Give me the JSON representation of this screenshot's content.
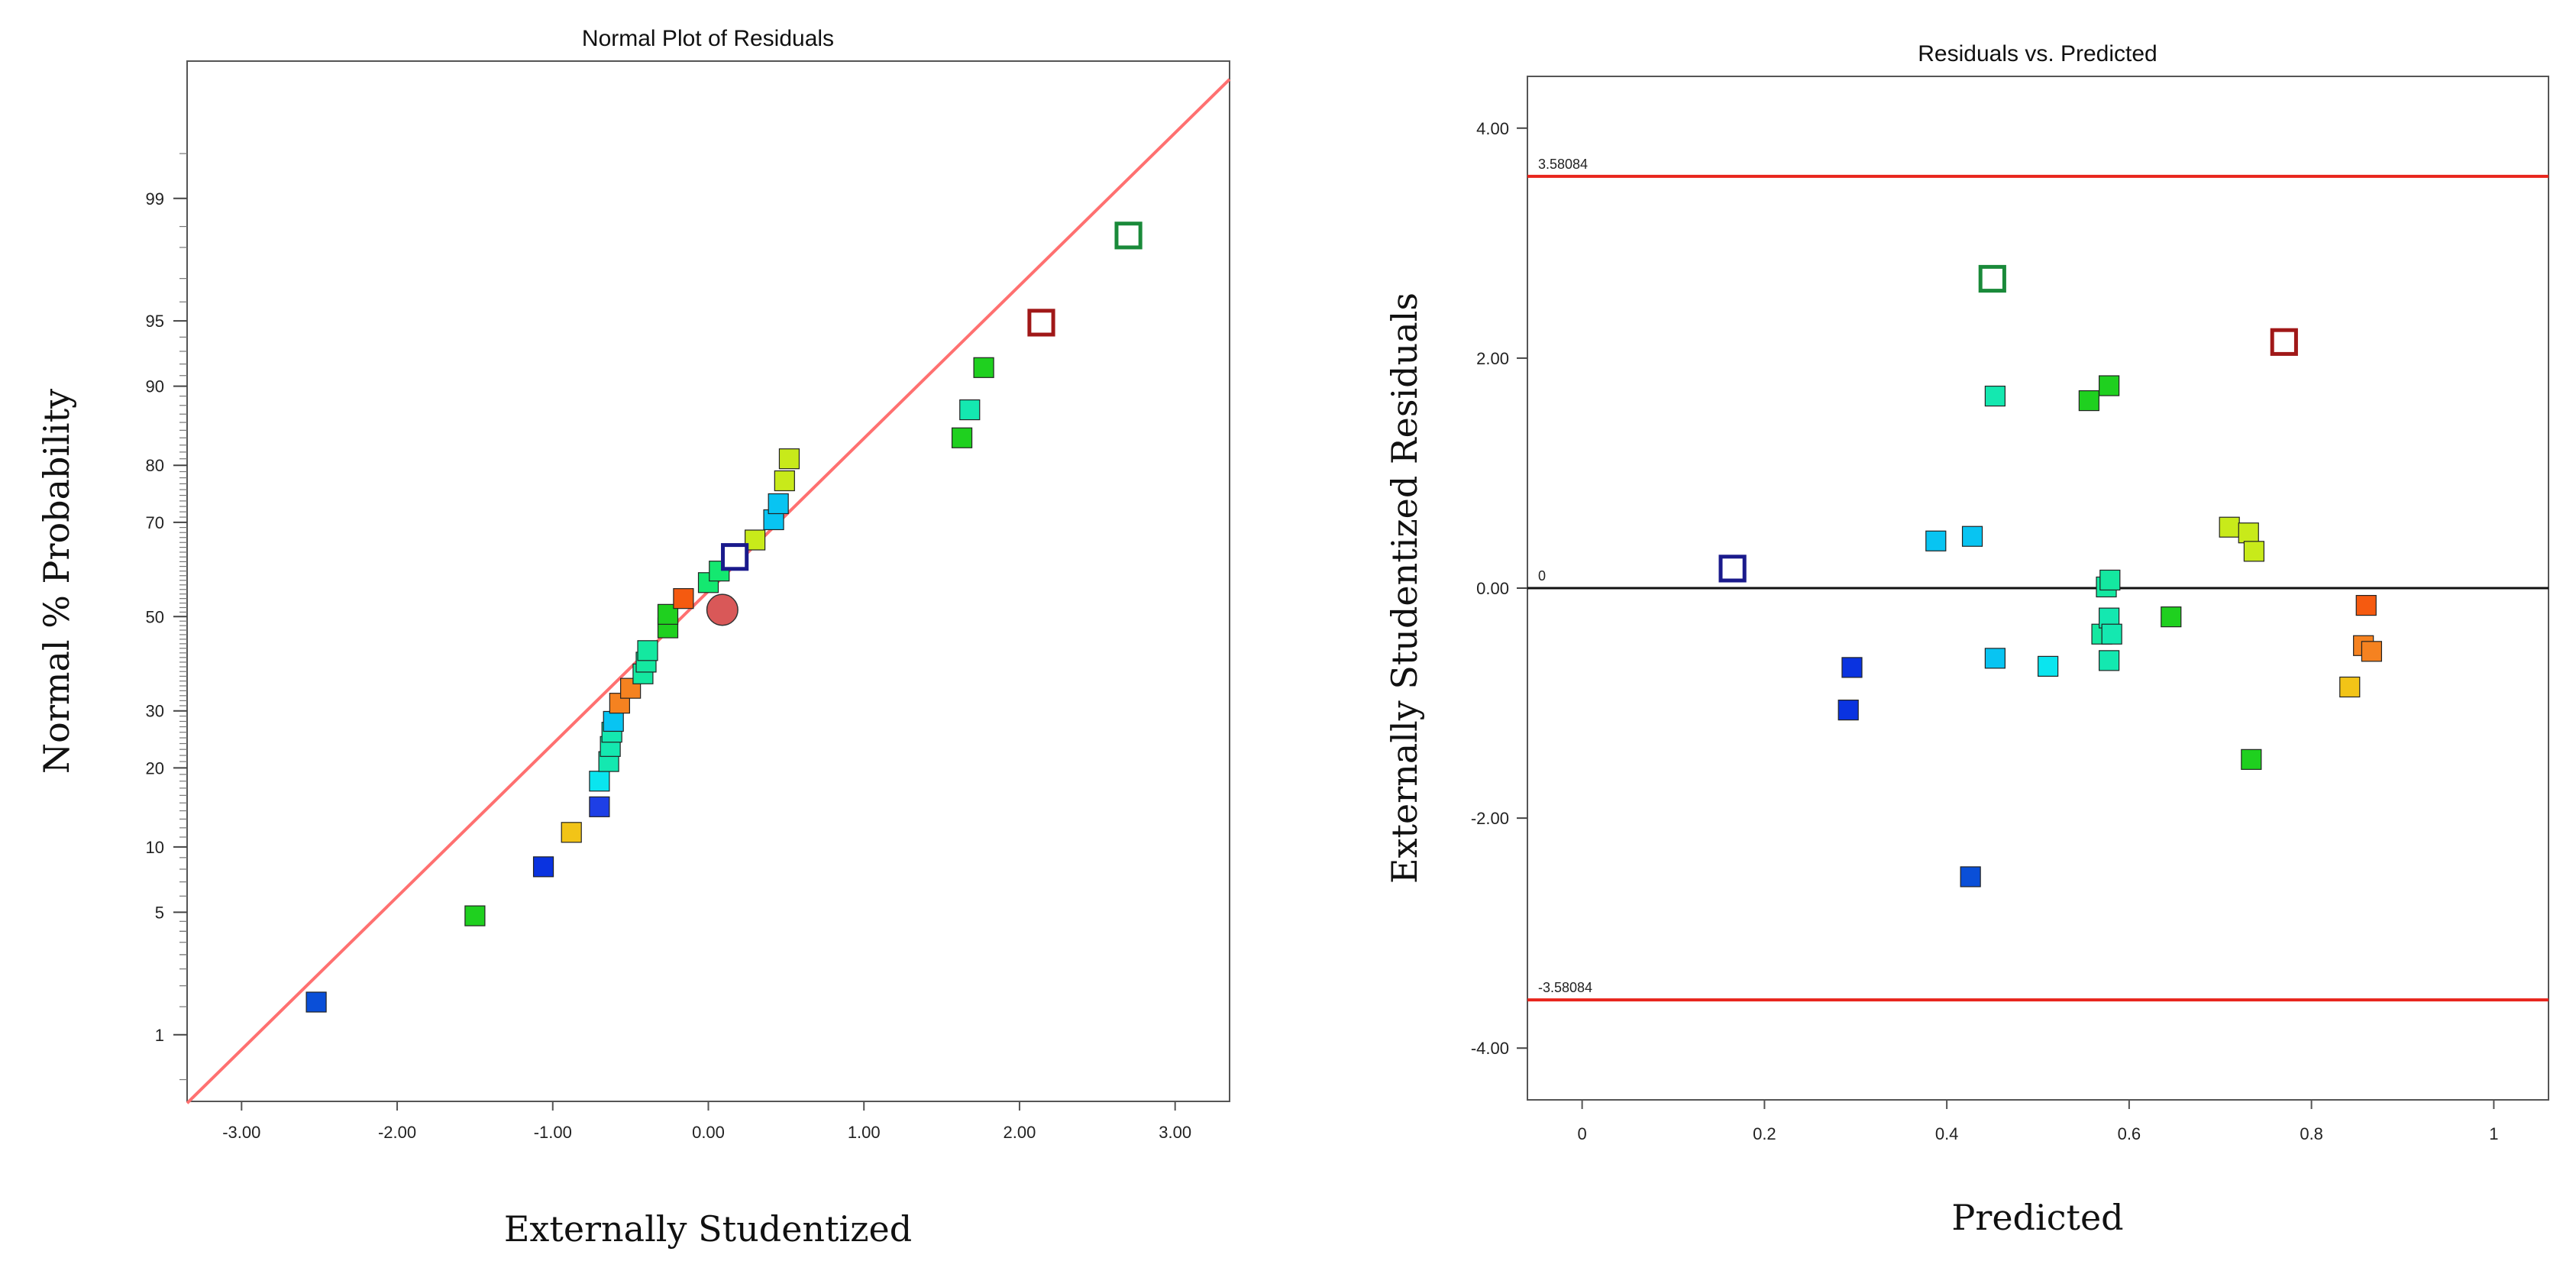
{
  "chart_data": [
    {
      "type": "scatter",
      "title": "Normal Plot of Residuals",
      "xlabel": "Externally Studentized",
      "ylabel": "Normal % Probability",
      "xlim": [
        -3.35,
        3.35
      ],
      "xticks": [
        -3,
        -2,
        -1,
        0,
        1,
        2,
        3
      ],
      "xtick_labels": [
        "-3.00",
        "-2.00",
        "-1.00",
        "0.00",
        "1.00",
        "2.00",
        "3.00"
      ],
      "yscale": "normal-probability",
      "ylim": [
        0.35,
        99.9
      ],
      "yticks": [
        1,
        5,
        10,
        20,
        30,
        50,
        70,
        80,
        90,
        95,
        99
      ],
      "ytick_labels": [
        "1",
        "5",
        "10",
        "20",
        "30",
        "50",
        "70",
        "80",
        "90",
        "95",
        "99"
      ],
      "reference_line": {
        "color": "#ff7070",
        "from": [
          -3.35,
          0.34
        ],
        "to": [
          3.35,
          99.86
        ]
      },
      "points": [
        {
          "x": -2.52,
          "y": 1.6,
          "color": "#0a4fd8",
          "style": "filled"
        },
        {
          "x": -1.5,
          "y": 4.8,
          "color": "#1fd01f",
          "style": "filled"
        },
        {
          "x": -1.06,
          "y": 8.2,
          "color": "#0a33e0",
          "style": "filled"
        },
        {
          "x": -0.88,
          "y": 11.5,
          "color": "#f2c417",
          "style": "filled"
        },
        {
          "x": -0.7,
          "y": 14.5,
          "color": "#1e3fe6",
          "style": "filled"
        },
        {
          "x": -0.7,
          "y": 18.0,
          "color": "#0ae5ef",
          "style": "filled"
        },
        {
          "x": -0.64,
          "y": 21.0,
          "color": "#14e8b0",
          "style": "filled"
        },
        {
          "x": -0.63,
          "y": 23.5,
          "color": "#14e8b0",
          "style": "filled"
        },
        {
          "x": -0.62,
          "y": 26.0,
          "color": "#14e8b0",
          "style": "filled"
        },
        {
          "x": -0.61,
          "y": 28.0,
          "color": "#08c4f2",
          "style": "filled"
        },
        {
          "x": -0.57,
          "y": 31.5,
          "color": "#f58220",
          "style": "filled"
        },
        {
          "x": -0.5,
          "y": 34.5,
          "color": "#f58220",
          "style": "filled"
        },
        {
          "x": -0.42,
          "y": 37.5,
          "color": "#14e8a0",
          "style": "filled"
        },
        {
          "x": -0.4,
          "y": 40.0,
          "color": "#14e8a0",
          "style": "filled"
        },
        {
          "x": -0.39,
          "y": 42.5,
          "color": "#14e8a0",
          "style": "filled"
        },
        {
          "x": -0.26,
          "y": 47.5,
          "color": "#1fd01f",
          "style": "filled"
        },
        {
          "x": -0.26,
          "y": 50.5,
          "color": "#1fd01f",
          "style": "filled"
        },
        {
          "x": -0.16,
          "y": 54.0,
          "color": "#f55a10",
          "style": "filled"
        },
        {
          "x": 0.0,
          "y": 57.5,
          "color": "#14e870",
          "style": "filled"
        },
        {
          "x": 0.07,
          "y": 60.0,
          "color": "#14e870",
          "style": "filled"
        },
        {
          "x": 0.3,
          "y": 66.5,
          "color": "#c8ea1a",
          "style": "filled"
        },
        {
          "x": 0.42,
          "y": 70.5,
          "color": "#08c4f2",
          "style": "filled"
        },
        {
          "x": 0.45,
          "y": 73.5,
          "color": "#08c4f2",
          "style": "filled"
        },
        {
          "x": 0.49,
          "y": 77.5,
          "color": "#c8ea1a",
          "style": "filled"
        },
        {
          "x": 0.52,
          "y": 81.0,
          "color": "#c8ea1a",
          "style": "filled"
        },
        {
          "x": 1.63,
          "y": 84.0,
          "color": "#1fd01f",
          "style": "filled"
        },
        {
          "x": 1.68,
          "y": 87.5,
          "color": "#14e8b0",
          "style": "filled"
        },
        {
          "x": 1.77,
          "y": 91.7,
          "color": "#1fd01f",
          "style": "filled"
        },
        {
          "x": 0.17,
          "y": 63.0,
          "color": "#1a1a8c",
          "style": "hollow"
        },
        {
          "x": 2.14,
          "y": 94.9,
          "color": "#a01818",
          "style": "hollow"
        },
        {
          "x": 2.7,
          "y": 98.3,
          "color": "#1a8a3a",
          "style": "hollow"
        },
        {
          "x": 0.09,
          "y": 51.5,
          "color": "#d95858",
          "style": "circle"
        }
      ]
    },
    {
      "type": "scatter",
      "title": "Residuals vs. Predicted",
      "xlabel": "Predicted",
      "ylabel": "Externally Studentized Residuals",
      "xlim": [
        -0.06,
        1.06
      ],
      "ylim": [
        -4.45,
        4.45
      ],
      "xticks": [
        0,
        0.2,
        0.4,
        0.6,
        0.8,
        1
      ],
      "xtick_labels": [
        "0",
        "0.2",
        "0.4",
        "0.6",
        "0.8",
        "1"
      ],
      "yticks": [
        -4,
        -2,
        0,
        2,
        4
      ],
      "ytick_labels": [
        "-4.00",
        "-2.00",
        "0.00",
        "2.00",
        "4.00"
      ],
      "hlines": [
        {
          "y": 3.58084,
          "label": "3.58084",
          "color": "#e8241c"
        },
        {
          "y": 0,
          "label": "0",
          "color": "#111111"
        },
        {
          "y": -3.58084,
          "label": "-3.58084",
          "color": "#e8241c"
        }
      ],
      "points": [
        {
          "x": 0.165,
          "y": 0.17,
          "color": "#1a1a8c",
          "style": "hollow"
        },
        {
          "x": 0.296,
          "y": -0.69,
          "color": "#0a33e0",
          "style": "filled"
        },
        {
          "x": 0.292,
          "y": -1.06,
          "color": "#0a33e0",
          "style": "filled"
        },
        {
          "x": 0.388,
          "y": 0.41,
          "color": "#08c4f2",
          "style": "filled"
        },
        {
          "x": 0.428,
          "y": 0.45,
          "color": "#08c4f2",
          "style": "filled"
        },
        {
          "x": 0.426,
          "y": -2.51,
          "color": "#0a4fd8",
          "style": "filled"
        },
        {
          "x": 0.45,
          "y": 2.69,
          "color": "#1a8a3a",
          "style": "hollow"
        },
        {
          "x": 0.453,
          "y": 1.67,
          "color": "#14e8b0",
          "style": "filled"
        },
        {
          "x": 0.453,
          "y": -0.61,
          "color": "#08c4f2",
          "style": "filled"
        },
        {
          "x": 0.511,
          "y": -0.68,
          "color": "#0ae5ef",
          "style": "filled"
        },
        {
          "x": 0.556,
          "y": 1.63,
          "color": "#1fd01f",
          "style": "filled"
        },
        {
          "x": 0.578,
          "y": 1.76,
          "color": "#1fd01f",
          "style": "filled"
        },
        {
          "x": 0.575,
          "y": 0.01,
          "color": "#14e8a0",
          "style": "filled"
        },
        {
          "x": 0.579,
          "y": 0.07,
          "color": "#14e8a0",
          "style": "filled"
        },
        {
          "x": 0.57,
          "y": -0.4,
          "color": "#14e8a0",
          "style": "filled"
        },
        {
          "x": 0.578,
          "y": -0.26,
          "color": "#14e8b0",
          "style": "filled"
        },
        {
          "x": 0.581,
          "y": -0.4,
          "color": "#14e8b0",
          "style": "filled"
        },
        {
          "x": 0.578,
          "y": -0.63,
          "color": "#14e8b0",
          "style": "filled"
        },
        {
          "x": 0.646,
          "y": -0.25,
          "color": "#1fd01f",
          "style": "filled"
        },
        {
          "x": 0.71,
          "y": 0.53,
          "color": "#c8ea1a",
          "style": "filled"
        },
        {
          "x": 0.731,
          "y": 0.48,
          "color": "#c8ea1a",
          "style": "filled"
        },
        {
          "x": 0.737,
          "y": 0.32,
          "color": "#c8ea1a",
          "style": "filled"
        },
        {
          "x": 0.734,
          "y": -1.49,
          "color": "#1fd01f",
          "style": "filled"
        },
        {
          "x": 0.77,
          "y": 2.14,
          "color": "#a01818",
          "style": "hollow"
        },
        {
          "x": 0.842,
          "y": -0.86,
          "color": "#f2c417",
          "style": "filled"
        },
        {
          "x": 0.86,
          "y": -0.15,
          "color": "#f55a10",
          "style": "filled"
        },
        {
          "x": 0.857,
          "y": -0.5,
          "color": "#f58220",
          "style": "filled"
        },
        {
          "x": 0.866,
          "y": -0.55,
          "color": "#f58220",
          "style": "filled"
        }
      ]
    }
  ]
}
